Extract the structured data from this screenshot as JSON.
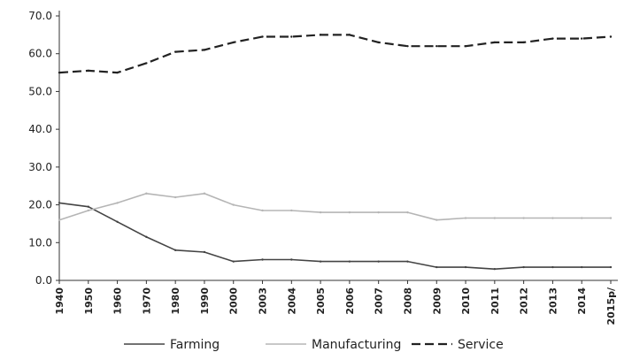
{
  "chart_data": {
    "type": "line",
    "title": "",
    "xlabel": "",
    "ylabel": "",
    "ylim": [
      0,
      70
    ],
    "yticks": [
      "0.0",
      "10.0",
      "20.0",
      "30.0",
      "40.0",
      "50.0",
      "60.0",
      "70.0"
    ],
    "categories": [
      "1940",
      "1950",
      "1960",
      "1970",
      "1980",
      "1990",
      "2000",
      "2003",
      "2004",
      "2005",
      "2006",
      "2007",
      "2008",
      "2009",
      "2010",
      "2011",
      "2012",
      "2013",
      "2014",
      "2015p/"
    ],
    "grid": false,
    "legend_position": "bottom",
    "series": [
      {
        "name": "Farming",
        "color": "#444444",
        "style": "solid",
        "values": [
          20.5,
          19.5,
          15.5,
          11.5,
          8.0,
          7.5,
          5.0,
          5.5,
          5.5,
          5.0,
          5.0,
          5.0,
          5.0,
          3.5,
          3.5,
          3.0,
          3.5,
          3.5,
          3.5,
          3.5
        ]
      },
      {
        "name": "Manufacturing",
        "color": "#b5b5b5",
        "style": "solid",
        "values": [
          16.0,
          18.5,
          20.5,
          23.0,
          22.0,
          23.0,
          20.0,
          18.5,
          18.5,
          18.0,
          18.0,
          18.0,
          18.0,
          16.0,
          16.5,
          16.5,
          16.5,
          16.5,
          16.5,
          16.5
        ]
      },
      {
        "name": "Service",
        "color": "#222222",
        "style": "dashed",
        "values": [
          55.0,
          55.5,
          55.0,
          57.5,
          60.5,
          61.0,
          63.0,
          64.5,
          64.5,
          65.0,
          65.0,
          63.0,
          62.0,
          62.0,
          62.0,
          63.0,
          63.0,
          64.0,
          64.0,
          64.5
        ]
      }
    ]
  }
}
